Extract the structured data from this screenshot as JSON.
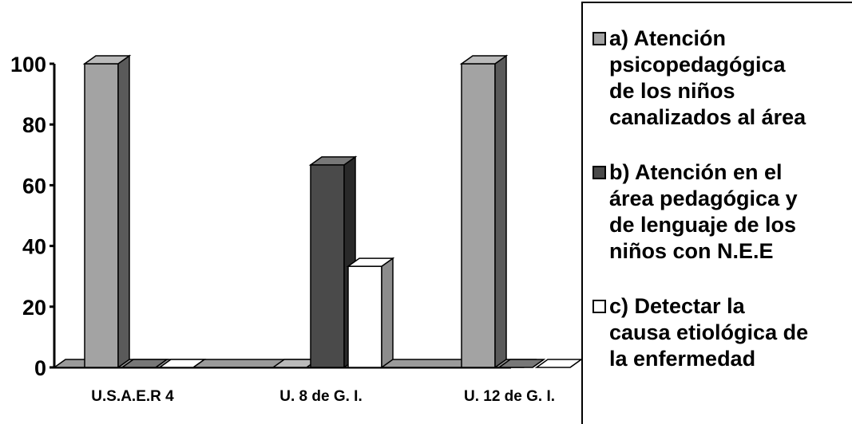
{
  "chart_data": {
    "type": "bar",
    "categories": [
      "U.S.A.E.R 4",
      "U. 8 de G. I.",
      "U. 12 de G. I."
    ],
    "series": [
      {
        "name": "a) Atención psicopedagógica de los niños canalizados al área",
        "values": [
          100,
          0,
          100
        ],
        "color": "#a3a3a3"
      },
      {
        "name": "b) Atención en el área pedagógica y de lenguaje de los niños con N.E.E",
        "values": [
          0,
          66.7,
          0
        ],
        "color": "#4a4a4a"
      },
      {
        "name": "c) Detectar la causa etiológica de la enfermedad",
        "values": [
          0,
          33.3,
          0
        ],
        "color": "#ffffff"
      }
    ],
    "yticks": [
      "0",
      "20",
      "40",
      "60",
      "80",
      "100"
    ],
    "ylim": [
      0,
      100
    ],
    "grid": false,
    "three_d": true,
    "legend_position": "right"
  },
  "legend": {
    "items": [
      {
        "label": "a) Atención\npsicopedagógica\nde los niños\ncanalizados al área",
        "color": "#a3a3a3"
      },
      {
        "label": "b) Atención en el\nárea pedagógica y\nde lenguaje de los\nniños con N.E.E",
        "color": "#4a4a4a"
      },
      {
        "label": "c) Detectar la\ncausa etiológica de\nla enfermedad",
        "color": "#ffffff"
      }
    ]
  }
}
